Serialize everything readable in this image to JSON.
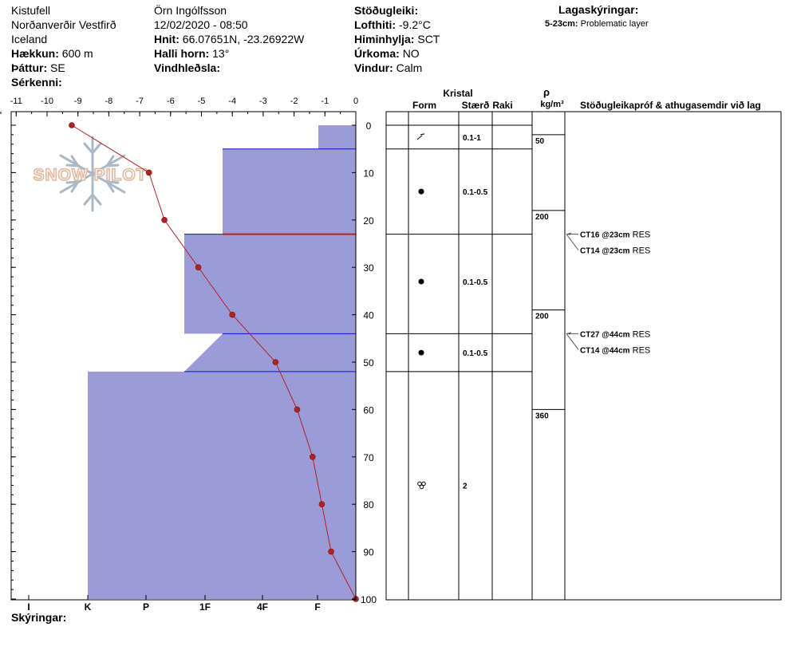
{
  "site": {
    "location": "Kistufell",
    "region": "Norðanverðir Vestfirð",
    "country": "Iceland",
    "elevation_label": "Hækkun:",
    "elevation_value": "600 m",
    "aspect_label": "Þáttur:",
    "aspect_value": "SE",
    "features_label": "Sérkenni:",
    "observer": "Örn Ingólfsson",
    "datetime": "12/02/2020 - 08:50",
    "coords_label": "Hnit:",
    "coords_value": "66.07651N, -23.26922W",
    "slope_label": "Halli horn:",
    "slope_value": "13°",
    "wind_loading_label": "Vindhleðsla:",
    "stability_label": "Stöðugleiki:",
    "air_temp_label": "Lofthiti:",
    "air_temp_value": "-9.2°C",
    "sky_label": "Himinhylja:",
    "sky_value": "SCT",
    "precip_label": "Úrkoma:",
    "precip_value": "NO",
    "wind_label": "Vindur:",
    "wind_value": "Calm"
  },
  "layer_legend": {
    "title": "Lagaskýringar:",
    "items": [
      {
        "range": "5-23cm:",
        "text": "Problematic layer"
      }
    ]
  },
  "logo_text": "SNOW PILOT",
  "footer_label": "Skýringar:",
  "columns": {
    "kristal": "Kristal",
    "form": "Form",
    "size": "Stærð",
    "wetness": "Raki",
    "density_symbol": "ρ",
    "density_unit": "kg/m³",
    "tests": "Stöðugleikapróf & athugasemdir við lag"
  },
  "chart_data": {
    "type": "line",
    "temperature_axis": {
      "ticks": [
        -11,
        -10,
        -9,
        -8,
        -7,
        -6,
        -5,
        -4,
        -3,
        -2,
        -1,
        0
      ],
      "range": [
        -11.5,
        0
      ]
    },
    "depth_axis": {
      "ticks": [
        0,
        10,
        20,
        30,
        40,
        50,
        60,
        70,
        80,
        90,
        100
      ],
      "range": [
        0,
        100
      ],
      "inverted": true
    },
    "hardness_axis": {
      "labels": [
        "I",
        "K",
        "P",
        "1F",
        "4F",
        "F"
      ]
    },
    "temperature_profile": {
      "color": "#b22222",
      "depth": [
        0,
        10,
        20,
        30,
        40,
        50,
        60,
        70,
        80,
        90,
        100
      ],
      "temp": [
        -9.2,
        -6.7,
        -6.2,
        -5.1,
        -4.0,
        -2.6,
        -1.9,
        -1.4,
        -1.1,
        -0.8,
        0
      ]
    },
    "hardness_color": "#9b9bd7",
    "hardness_outline": "#1010c8",
    "hardness_profile": [
      {
        "top": 0,
        "bottom": 5,
        "hardness": "F"
      },
      {
        "top": 5,
        "bottom": 23,
        "hardness": "4F"
      },
      {
        "top": 23,
        "bottom": 44,
        "hardness": "1F+"
      },
      {
        "top": 44,
        "bottom": 52,
        "hardness": "transition"
      },
      {
        "top": 52,
        "bottom": 100,
        "hardness": "K"
      }
    ],
    "layer_boundaries": [
      0,
      5,
      23,
      44,
      52
    ],
    "problematic_line_depth": 23,
    "crystals": [
      {
        "depth": 2.5,
        "form": "precipitation-particle",
        "size": "0.1-1"
      },
      {
        "depth": 14,
        "form": "rounded-grain",
        "size": "0.1-0.5"
      },
      {
        "depth": 33,
        "form": "rounded-grain",
        "size": "0.1-0.5"
      },
      {
        "depth": 48,
        "form": "rounded-grain",
        "size": "0.1-0.5"
      },
      {
        "depth": 76,
        "form": "melt-form",
        "size": "2"
      }
    ],
    "densities": [
      {
        "top": 2,
        "bottom": 18,
        "value": "50"
      },
      {
        "top": 18,
        "bottom": 39,
        "value": "200"
      },
      {
        "top": 39,
        "bottom": 60,
        "value": "200"
      },
      {
        "top": 60,
        "bottom": 100,
        "value": "360"
      }
    ],
    "tests": [
      {
        "depth": 23,
        "code": "CT16 @23cm",
        "result": "RES"
      },
      {
        "depth": 23,
        "code": "CT14 @23cm",
        "result": "RES"
      },
      {
        "depth": 44,
        "code": "CT27 @44cm",
        "result": "RES"
      },
      {
        "depth": 44,
        "code": "CT14 @44cm",
        "result": "RES"
      }
    ]
  }
}
